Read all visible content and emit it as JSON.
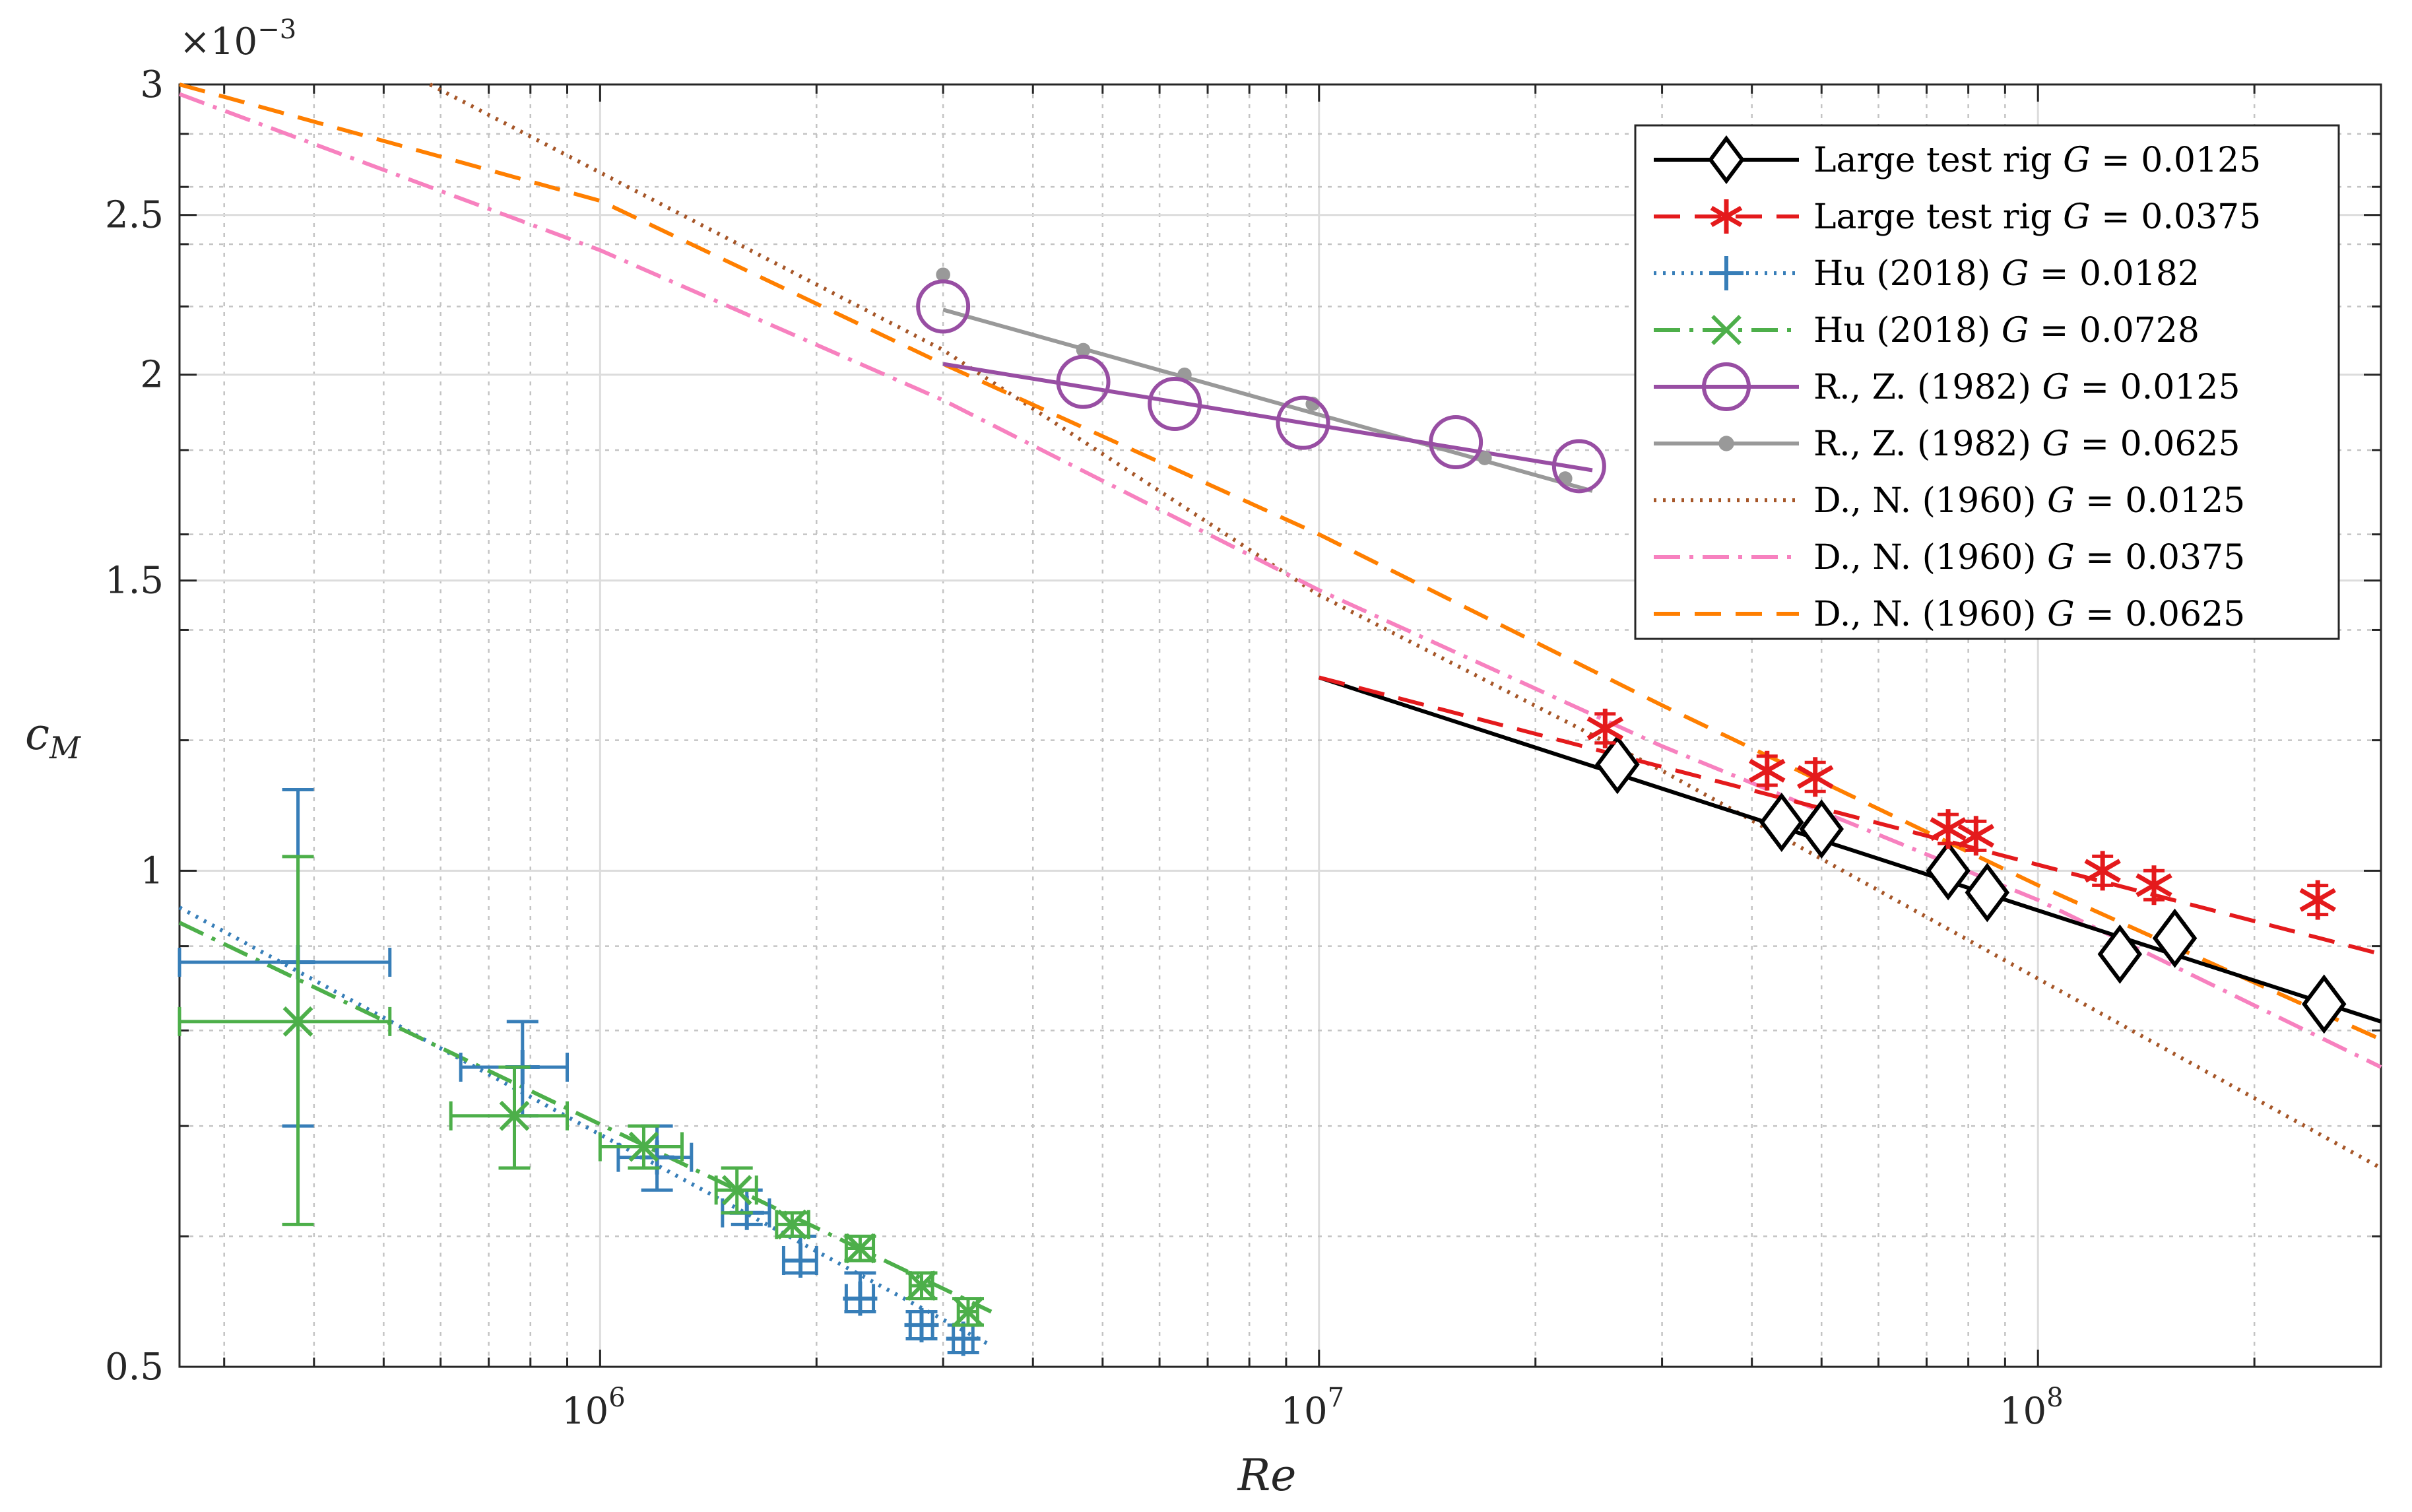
{
  "chart_data": {
    "type": "scatter",
    "xscale": "log",
    "yscale": "log",
    "xlabel": "Re",
    "ylabel": "c_M",
    "ylabel_base": "c",
    "ylabel_sub": "M",
    "xlim": [
      260000,
      300000000
    ],
    "ylim": [
      0.0005,
      0.003
    ],
    "y_multiplier_label": "×10",
    "y_multiplier_exp": "−3",
    "grid": true,
    "minor_grid": true,
    "legend_location": "top-right",
    "xticks": [
      {
        "value": 1000000,
        "base": "10",
        "exp": "6"
      },
      {
        "value": 10000000,
        "base": "10",
        "exp": "7"
      },
      {
        "value": 100000000,
        "base": "10",
        "exp": "8"
      }
    ],
    "yticks": [
      {
        "value": 0.0005,
        "label": "0.5"
      },
      {
        "value": 0.001,
        "label": "1"
      },
      {
        "value": 0.0015,
        "label": "1.5"
      },
      {
        "value": 0.002,
        "label": "2"
      },
      {
        "value": 0.0025,
        "label": "2.5"
      },
      {
        "value": 0.003,
        "label": "3"
      }
    ],
    "series": [
      {
        "name": "Large test rig G = 0.0125",
        "legend_prefix": "Large test rig",
        "G": "0.0125",
        "color": "#000000",
        "dash": "",
        "marker": "diamond",
        "points": [
          [
            26000000,
            0.00116
          ],
          [
            44000000,
            0.00107
          ],
          [
            50000000,
            0.00106
          ],
          [
            75000000,
            0.001
          ],
          [
            85000000,
            0.00097
          ],
          [
            130000000,
            0.00089
          ],
          [
            155000000,
            0.00091
          ],
          [
            250000000,
            0.00083
          ]
        ],
        "fit": [
          [
            10000000,
            0.00131
          ],
          [
            300000000,
            0.00081
          ]
        ]
      },
      {
        "name": "Large test rig G = 0.0375",
        "legend_prefix": "Large test rig",
        "G": "0.0375",
        "color": "#e41a1c",
        "dash": "40,22",
        "marker": "asterisk",
        "points": [
          [
            25000000,
            0.00122
          ],
          [
            42000000,
            0.00115
          ],
          [
            49000000,
            0.00114
          ],
          [
            75000000,
            0.00106
          ],
          [
            82000000,
            0.00105
          ],
          [
            123000000,
            0.001
          ],
          [
            145000000,
            0.00098
          ],
          [
            245000000,
            0.00096
          ]
        ],
        "fit": [
          [
            10000000,
            0.00131
          ],
          [
            300000000,
            0.00089
          ]
        ]
      },
      {
        "name": "Hu (2018) G = 0.0182",
        "legend_prefix": "Hu (2018)",
        "G": "0.0182",
        "color": "#377eb8",
        "dash": "4,10",
        "marker": "plus",
        "points": [
          [
            380000,
            0.00088
          ],
          [
            780000,
            0.00076
          ],
          [
            1200000,
            0.00067
          ],
          [
            1600000,
            0.00062
          ],
          [
            1900000,
            0.00058
          ],
          [
            2300000,
            0.00055
          ],
          [
            2800000,
            0.00053
          ],
          [
            3200000,
            0.00052
          ]
        ],
        "yerr_low": [
          0.0007,
          0.00071,
          0.00064,
          0.00061,
          0.00057,
          0.00054,
          0.00052,
          0.00051
        ],
        "yerr_high": [
          0.00112,
          0.00081,
          0.0007,
          0.00064,
          0.0006,
          0.00057,
          0.00054,
          0.00053
        ],
        "xerr_low": [
          260000,
          640000,
          1060000,
          1480000,
          1800000,
          2200000,
          2700000,
          3100000
        ],
        "xerr_high": [
          510000,
          900000,
          1340000,
          1720000,
          2000000,
          2400000,
          2900000,
          3300000
        ],
        "fit": [
          [
            260000,
            0.00095
          ],
          [
            3500000,
            0.000515
          ]
        ]
      },
      {
        "name": "Hu (2018) G = 0.0728",
        "legend_prefix": "Hu (2018)",
        "G": "0.0728",
        "color": "#4daf4a",
        "dash": "40,14,6,14",
        "marker": "cross",
        "points": [
          [
            380000,
            0.00081
          ],
          [
            760000,
            0.00071
          ],
          [
            1150000,
            0.00068
          ],
          [
            1550000,
            0.00064
          ],
          [
            1850000,
            0.00061
          ],
          [
            2300000,
            0.00059
          ],
          [
            2800000,
            0.00056
          ],
          [
            3250000,
            0.00054
          ]
        ],
        "yerr_low": [
          0.00061,
          0.00066,
          0.00066,
          0.00062,
          0.0006,
          0.00058,
          0.00055,
          0.00053
        ],
        "yerr_high": [
          0.00102,
          0.00076,
          0.0007,
          0.00066,
          0.00062,
          0.0006,
          0.00057,
          0.00055
        ],
        "xerr_low": [
          260000,
          620000,
          1000000,
          1450000,
          1760000,
          2200000,
          2700000,
          3150000
        ],
        "xerr_high": [
          510000,
          900000,
          1300000,
          1650000,
          1950000,
          2400000,
          2900000,
          3350000
        ],
        "fit": [
          [
            260000,
            0.00093
          ],
          [
            3500000,
            0.00054
          ]
        ]
      },
      {
        "name": "R., Z. (1982) G = 0.0125",
        "legend_prefix": "R., Z. (1982)",
        "G": "0.0125",
        "color": "#984ea3",
        "dash": "",
        "marker": "circle",
        "points": [
          [
            3000000,
            0.0022
          ],
          [
            4700000,
            0.00198
          ],
          [
            6300000,
            0.00192
          ],
          [
            9500000,
            0.00187
          ],
          [
            15500000,
            0.00182
          ],
          [
            23000000,
            0.00176
          ]
        ],
        "fit": [
          [
            3000000,
            0.00203
          ],
          [
            24000000,
            0.00175
          ]
        ]
      },
      {
        "name": "R., Z. (1982) G = 0.0625",
        "legend_prefix": "R., Z. (1982)",
        "G": "0.0625",
        "color": "#999999",
        "dash": "",
        "marker": "dot",
        "points": [
          [
            3000000,
            0.0023
          ],
          [
            4700000,
            0.00207
          ],
          [
            6500000,
            0.002
          ],
          [
            9800000,
            0.00192
          ],
          [
            17000000,
            0.00178
          ],
          [
            22000000,
            0.00173
          ]
        ],
        "fit": [
          [
            3000000,
            0.00219
          ],
          [
            24000000,
            0.0017
          ]
        ]
      },
      {
        "name": "D., N. (1960) G = 0.0125",
        "legend_prefix": "D., N. (1960)",
        "G": "0.0125",
        "color": "#a65628",
        "dash": "4,10",
        "marker": "none",
        "points": [],
        "fit": [
          [
            580000,
            0.003
          ],
          [
            3000000,
            0.00207
          ],
          [
            10000000,
            0.00147
          ],
          [
            30000000,
            0.00115
          ],
          [
            100000000,
            0.00086
          ],
          [
            300000000,
            0.00066
          ]
        ]
      },
      {
        "name": "D., N. (1960) G = 0.0375",
        "legend_prefix": "D., N. (1960)",
        "G": "0.0375",
        "color": "#f781bf",
        "dash": "40,14,6,14",
        "marker": "none",
        "points": [],
        "fit": [
          [
            260000,
            0.00296
          ],
          [
            1000000,
            0.00238
          ],
          [
            3000000,
            0.00193
          ],
          [
            10000000,
            0.00148
          ],
          [
            30000000,
            0.00119
          ],
          [
            100000000,
            0.00096
          ],
          [
            300000000,
            0.00076
          ]
        ]
      },
      {
        "name": "D., N. (1960) G = 0.0625",
        "legend_prefix": "D., N. (1960)",
        "G": "0.0625",
        "color": "#ff7f00",
        "dash": "40,22",
        "marker": "none",
        "points": [],
        "fit": [
          [
            260000,
            0.003
          ],
          [
            1000000,
            0.00255
          ],
          [
            3000000,
            0.00203
          ],
          [
            10000000,
            0.0016
          ],
          [
            30000000,
            0.00126
          ],
          [
            100000000,
            0.00098
          ],
          [
            300000000,
            0.00079
          ]
        ]
      }
    ]
  }
}
